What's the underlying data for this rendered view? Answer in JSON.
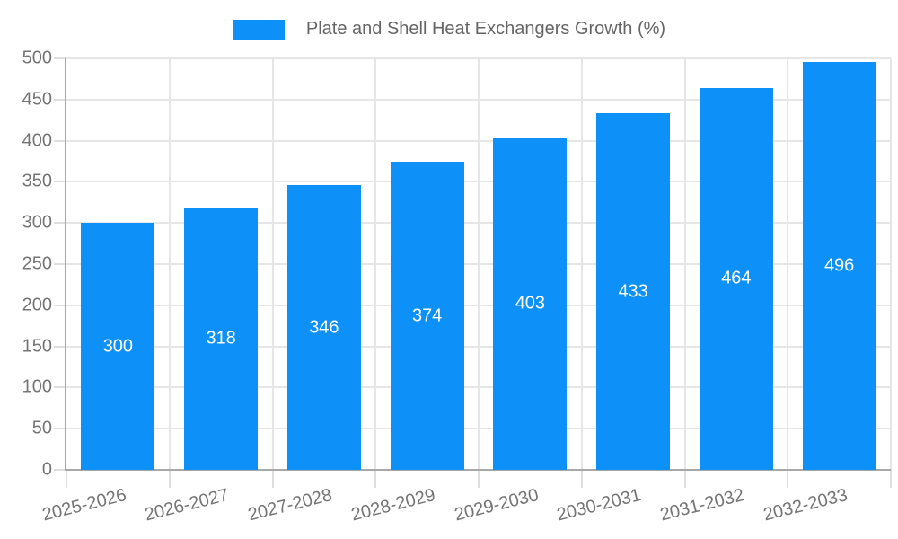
{
  "chart_data": {
    "type": "bar",
    "legend": {
      "label": "Plate and Shell Heat Exchangers Growth (%)",
      "position": "top-center"
    },
    "categories": [
      "2025-2026",
      "2026-2027",
      "2027-2028",
      "2028-2029",
      "2029-2030",
      "2030-2031",
      "2031-2032",
      "2032-2033"
    ],
    "series": [
      {
        "name": "Plate and Shell Heat Exchangers Growth (%)",
        "values": [
          300,
          318,
          346,
          374,
          403,
          433,
          464,
          496
        ]
      }
    ],
    "value_labels": {
      "shown": true,
      "position": "bar-center",
      "color": "#ffffff"
    },
    "xlabel": "",
    "ylabel": "",
    "yaxis": {
      "min": 0,
      "max": 500,
      "tick_step": 50,
      "ticks": [
        0,
        50,
        100,
        150,
        200,
        250,
        300,
        350,
        400,
        450,
        500
      ]
    },
    "xaxis": {
      "label_rotation_deg": -14
    },
    "grid": {
      "horizontal": true,
      "vertical": true
    },
    "colors": {
      "bar": "#0d90f8",
      "grid": "#e6e6e6",
      "axis": "#a8a8a8",
      "tick": "#dedede",
      "axis_text": "#757575",
      "legend_text": "#666666",
      "value_text": "#ffffff",
      "background": "#ffffff"
    }
  }
}
